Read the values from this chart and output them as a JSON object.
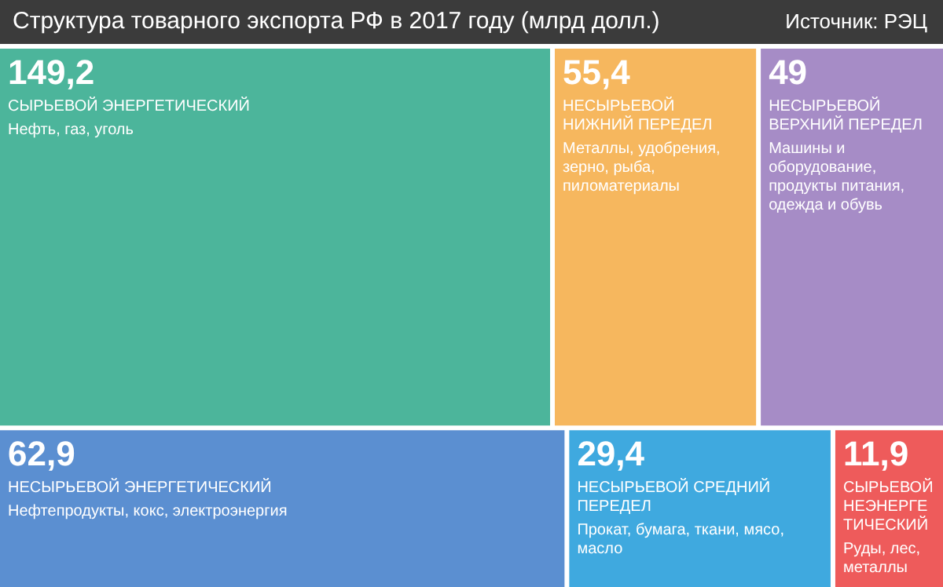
{
  "chart_data": {
    "type": "other",
    "title": "Структура товарного экспорта РФ в 2017 году (млрд долл.)",
    "categories": [
      "СЫРЬЕВОЙ ЭНЕРГЕТИЧЕСКИЙ",
      "НЕСЫРЬЕВОЙ НИЖНИЙ ПЕРЕДЕЛ",
      "НЕСЫРЬЕВОЙ ВЕРХНИЙ ПЕРЕДЕЛ",
      "НЕСЫРЬЕВОЙ ЭНЕРГЕТИЧЕСКИЙ",
      "НЕСЫРЬЕВОЙ СРЕДНИЙ ПЕРЕДЕЛ",
      "СЫРЬЕВОЙ НЕЭНЕРГЕТИЧЕСКИЙ"
    ],
    "values": [
      149.2,
      55.4,
      49,
      62.9,
      29.4,
      11.9
    ],
    "value_labels": [
      "149,2",
      "55,4",
      "49",
      "62,9",
      "29,4",
      "11,9"
    ],
    "colors": [
      "#4cb59b",
      "#f6b75e",
      "#a68cc6",
      "#5b8fd1",
      "#3fa9df",
      "#ee5b5b"
    ],
    "annotations": [
      "Источник: РЭЦ",
      {
        "text": "Нефть, газ, уголь",
        "x": "СЫРЬЕВОЙ ЭНЕРГЕТИЧЕСКИЙ"
      },
      {
        "text": "Металлы, удобрения, зерно, рыба, пиломатериалы",
        "x": "НЕСЫРЬЕВОЙ НИЖНИЙ ПЕРЕДЕЛ"
      },
      {
        "text": "Машины и оборудование, продукты питания, одежда и обувь",
        "x": "НЕСЫРЬЕВОЙ ВЕРХНИЙ ПЕРЕДЕЛ"
      },
      {
        "text": "Нефтепродукты, кокс, электроэнергия",
        "x": "НЕСЫРЬЕВОЙ ЭНЕРГЕТИЧЕСКИЙ"
      },
      {
        "text": "Прокат, бумага, ткани, мясо, масло",
        "x": "НЕСЫРЬЕВОЙ СРЕДНИЙ ПЕРЕДЕЛ"
      },
      {
        "text": "Руды, лес, металлы",
        "x": "СЫРЬЕВОЙ НЕЭНЕРГЕТИЧЕСКИЙ"
      }
    ]
  }
}
